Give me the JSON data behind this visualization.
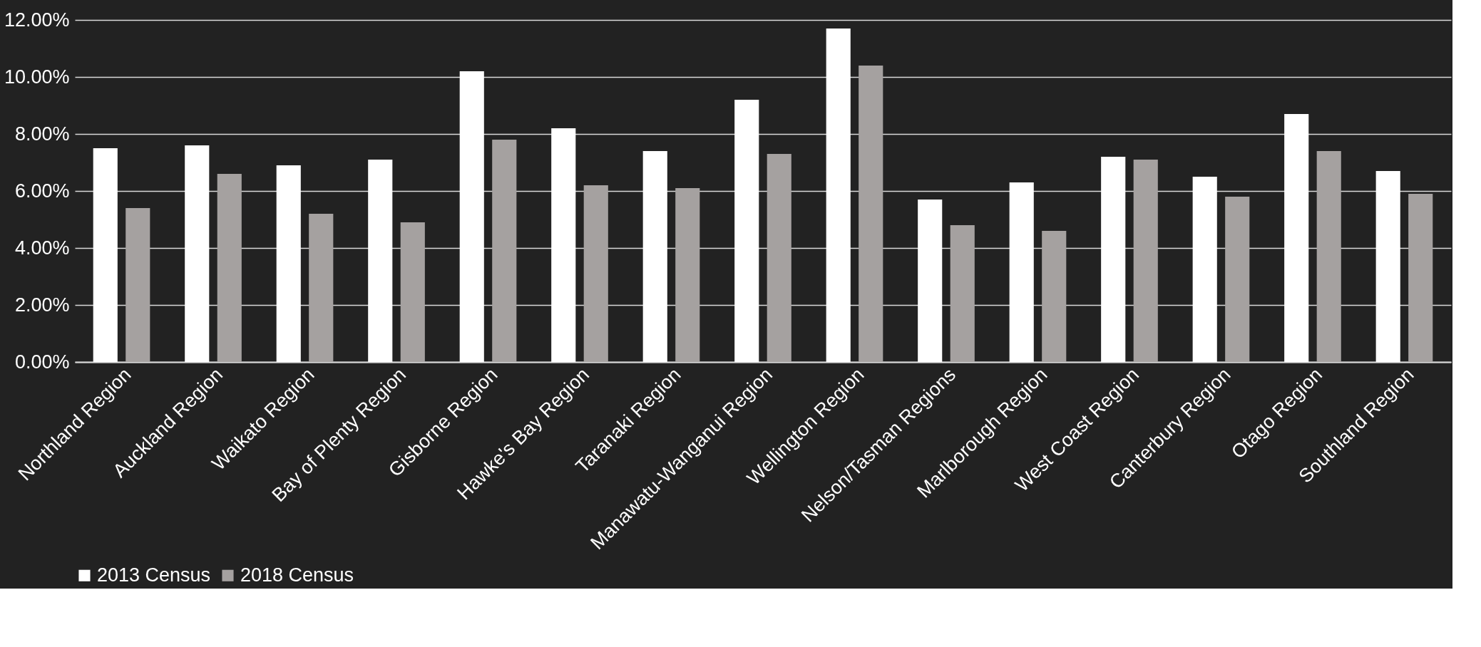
{
  "chart_data": {
    "type": "bar",
    "categories": [
      "Northland Region",
      "Auckland Region",
      "Waikato Region",
      "Bay of Plenty Region",
      "Gisborne Region",
      "Hawke's Bay Region",
      "Taranaki Region",
      "Manawatu-Wanganui Region",
      "Wellington Region",
      "Nelson/Tasman Regions",
      "Marlborough Region",
      "West Coast Region",
      "Canterbury Region",
      "Otago Region",
      "Southland Region"
    ],
    "series": [
      {
        "name": "2013 Census",
        "color": "#ffffff",
        "values": [
          7.5,
          7.6,
          6.9,
          7.1,
          10.2,
          8.2,
          7.4,
          9.2,
          11.7,
          5.7,
          6.3,
          7.2,
          6.5,
          8.7,
          6.7
        ]
      },
      {
        "name": "2018 Census",
        "color": "#a5a1a0",
        "values": [
          5.4,
          6.6,
          5.2,
          4.9,
          7.8,
          6.2,
          6.1,
          7.3,
          10.4,
          4.8,
          4.6,
          7.1,
          5.8,
          7.4,
          5.9
        ]
      }
    ],
    "ylim": [
      0,
      12
    ],
    "yticks": [
      {
        "value": 0,
        "label": "0.00%"
      },
      {
        "value": 2,
        "label": "2.00%"
      },
      {
        "value": 4,
        "label": "4.00%"
      },
      {
        "value": 6,
        "label": "6.00%"
      },
      {
        "value": 8,
        "label": "8.00%"
      },
      {
        "value": 10,
        "label": "10.00%"
      },
      {
        "value": 12,
        "label": "12.00%"
      }
    ],
    "grid": "y",
    "legend": "bottom"
  }
}
